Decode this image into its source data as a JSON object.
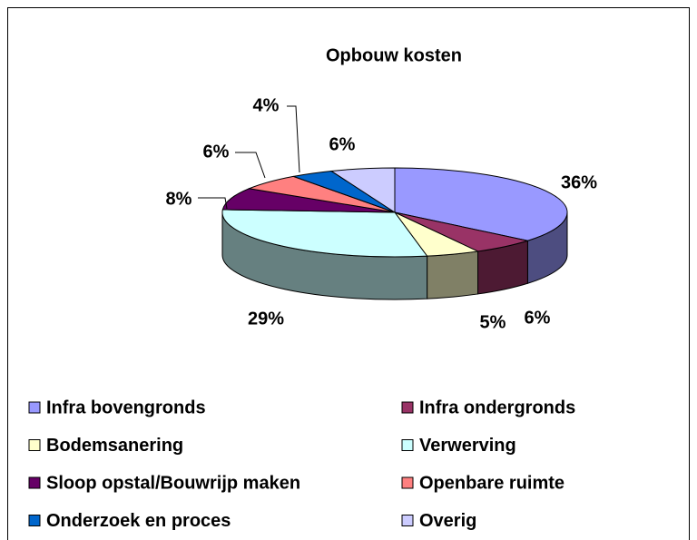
{
  "chart_data": {
    "type": "pie3d",
    "title": "Opbouw kosten",
    "categories": [
      "Infra bovengronds",
      "Infra ondergronds",
      "Bodemsanering",
      "Verwerving",
      "Sloop opstal/Bouwrijp maken",
      "Openbare ruimte",
      "Onderzoek en proces",
      "Overig"
    ],
    "values": [
      36,
      6,
      5,
      29,
      8,
      6,
      4,
      6
    ],
    "value_labels": [
      "36%",
      "6%",
      "5%",
      "29%",
      "8%",
      "6%",
      "4%",
      "6%"
    ],
    "colors": [
      "#9999ff",
      "#993366",
      "#ffffcc",
      "#ccffff",
      "#660066",
      "#ff8080",
      "#0066cc",
      "#ccccff"
    ],
    "legend": "bottom"
  }
}
